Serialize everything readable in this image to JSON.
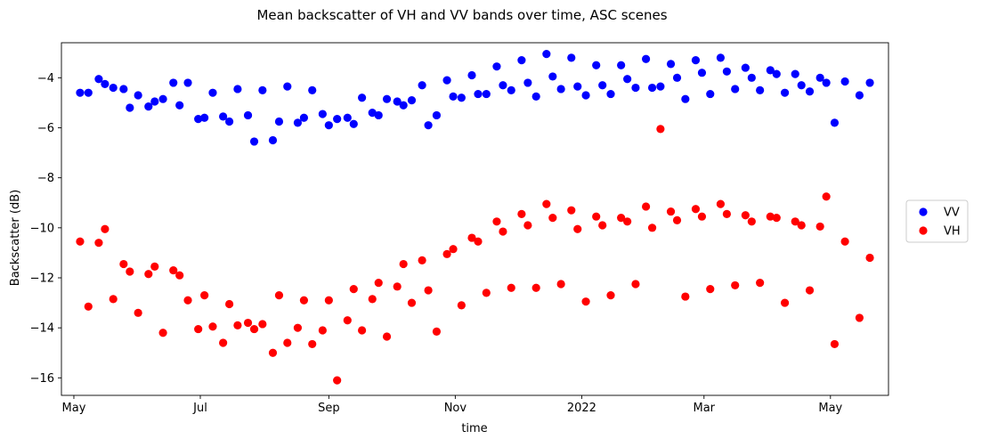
{
  "chart_data": {
    "type": "scatter",
    "title": "Mean backscatter of VH and VV bands over time, ASC scenes",
    "xlabel": "time",
    "ylabel": "Backscatter (dB)",
    "xlim": [
      "2021-04-25",
      "2022-05-29"
    ],
    "ylim": [
      -16.7,
      -2.6
    ],
    "x_ticks": [
      {
        "date": "2021-05-01",
        "label": "May"
      },
      {
        "date": "2021-07-01",
        "label": "Jul"
      },
      {
        "date": "2021-09-01",
        "label": "Sep"
      },
      {
        "date": "2021-11-01",
        "label": "Nov"
      },
      {
        "date": "2022-01-01",
        "label": "2022"
      },
      {
        "date": "2022-03-01",
        "label": "Mar"
      },
      {
        "date": "2022-05-01",
        "label": "May"
      }
    ],
    "y_ticks": [
      -16,
      -14,
      -12,
      -10,
      -8,
      -6,
      -4
    ],
    "y_tick_labels": [
      "−16",
      "−14",
      "−12",
      "−10",
      "−8",
      "−6",
      "−4"
    ],
    "legend_position": "right",
    "series": [
      {
        "name": "VV",
        "color": "#0000ff",
        "points": [
          [
            "2021-05-04",
            -4.6
          ],
          [
            "2021-05-08",
            -4.6
          ],
          [
            "2021-05-13",
            -4.05
          ],
          [
            "2021-05-16",
            -4.25
          ],
          [
            "2021-05-20",
            -4.4
          ],
          [
            "2021-05-25",
            -4.45
          ],
          [
            "2021-05-28",
            -5.2
          ],
          [
            "2021-06-01",
            -4.7
          ],
          [
            "2021-06-06",
            -5.15
          ],
          [
            "2021-06-09",
            -4.95
          ],
          [
            "2021-06-13",
            -4.85
          ],
          [
            "2021-06-18",
            -4.2
          ],
          [
            "2021-06-21",
            -5.1
          ],
          [
            "2021-06-25",
            -4.2
          ],
          [
            "2021-06-30",
            -5.65
          ],
          [
            "2021-07-03",
            -5.6
          ],
          [
            "2021-07-07",
            -4.6
          ],
          [
            "2021-07-12",
            -5.55
          ],
          [
            "2021-07-15",
            -5.75
          ],
          [
            "2021-07-19",
            -4.45
          ],
          [
            "2021-07-24",
            -5.5
          ],
          [
            "2021-07-27",
            -6.55
          ],
          [
            "2021-07-31",
            -4.5
          ],
          [
            "2021-08-05",
            -6.5
          ],
          [
            "2021-08-08",
            -5.75
          ],
          [
            "2021-08-12",
            -4.35
          ],
          [
            "2021-08-17",
            -5.8
          ],
          [
            "2021-08-20",
            -5.6
          ],
          [
            "2021-08-24",
            -4.5
          ],
          [
            "2021-08-29",
            -5.45
          ],
          [
            "2021-09-01",
            -5.9
          ],
          [
            "2021-09-05",
            -5.65
          ],
          [
            "2021-09-10",
            -5.6
          ],
          [
            "2021-09-13",
            -5.85
          ],
          [
            "2021-09-17",
            -4.8
          ],
          [
            "2021-09-22",
            -5.4
          ],
          [
            "2021-09-25",
            -5.5
          ],
          [
            "2021-09-29",
            -4.85
          ],
          [
            "2021-10-04",
            -4.95
          ],
          [
            "2021-10-07",
            -5.1
          ],
          [
            "2021-10-11",
            -4.9
          ],
          [
            "2021-10-16",
            -4.3
          ],
          [
            "2021-10-19",
            -5.9
          ],
          [
            "2021-10-23",
            -5.5
          ],
          [
            "2021-10-28",
            -4.1
          ],
          [
            "2021-10-31",
            -4.75
          ],
          [
            "2021-11-04",
            -4.8
          ],
          [
            "2021-11-09",
            -3.9
          ],
          [
            "2021-11-12",
            -4.65
          ],
          [
            "2021-11-16",
            -4.65
          ],
          [
            "2021-11-21",
            -3.55
          ],
          [
            "2021-11-24",
            -4.3
          ],
          [
            "2021-11-28",
            -4.5
          ],
          [
            "2021-12-03",
            -3.3
          ],
          [
            "2021-12-06",
            -4.2
          ],
          [
            "2021-12-10",
            -4.75
          ],
          [
            "2021-12-15",
            -3.05
          ],
          [
            "2021-12-18",
            -3.95
          ],
          [
            "2021-12-22",
            -4.45
          ],
          [
            "2021-12-27",
            -3.2
          ],
          [
            "2021-12-30",
            -4.35
          ],
          [
            "2022-01-03",
            -4.7
          ],
          [
            "2022-01-08",
            -3.5
          ],
          [
            "2022-01-11",
            -4.3
          ],
          [
            "2022-01-15",
            -4.65
          ],
          [
            "2022-01-20",
            -3.5
          ],
          [
            "2022-01-23",
            -4.05
          ],
          [
            "2022-01-27",
            -4.4
          ],
          [
            "2022-02-01",
            -3.25
          ],
          [
            "2022-02-04",
            -4.4
          ],
          [
            "2022-02-08",
            -4.35
          ],
          [
            "2022-02-13",
            -3.45
          ],
          [
            "2022-02-16",
            -4.0
          ],
          [
            "2022-02-20",
            -4.85
          ],
          [
            "2022-02-25",
            -3.3
          ],
          [
            "2022-02-28",
            -3.8
          ],
          [
            "2022-03-04",
            -4.65
          ],
          [
            "2022-03-09",
            -3.2
          ],
          [
            "2022-03-12",
            -3.75
          ],
          [
            "2022-03-16",
            -4.45
          ],
          [
            "2022-03-21",
            -3.6
          ],
          [
            "2022-03-24",
            -4.0
          ],
          [
            "2022-03-28",
            -4.5
          ],
          [
            "2022-04-02",
            -3.7
          ],
          [
            "2022-04-05",
            -3.85
          ],
          [
            "2022-04-09",
            -4.6
          ],
          [
            "2022-04-14",
            -3.85
          ],
          [
            "2022-04-17",
            -4.3
          ],
          [
            "2022-04-21",
            -4.55
          ],
          [
            "2022-04-26",
            -4.0
          ],
          [
            "2022-04-29",
            -4.2
          ],
          [
            "2022-05-03",
            -5.8
          ],
          [
            "2022-05-08",
            -4.15
          ],
          [
            "2022-05-15",
            -4.7
          ],
          [
            "2022-05-20",
            -4.2
          ]
        ]
      },
      {
        "name": "VH",
        "color": "#ff0000",
        "points": [
          [
            "2021-05-04",
            -10.55
          ],
          [
            "2021-05-08",
            -13.15
          ],
          [
            "2021-05-13",
            -10.6
          ],
          [
            "2021-05-16",
            -10.05
          ],
          [
            "2021-05-20",
            -12.85
          ],
          [
            "2021-05-25",
            -11.45
          ],
          [
            "2021-05-28",
            -11.75
          ],
          [
            "2021-06-01",
            -13.4
          ],
          [
            "2021-06-06",
            -11.85
          ],
          [
            "2021-06-09",
            -11.55
          ],
          [
            "2021-06-13",
            -14.2
          ],
          [
            "2021-06-18",
            -11.7
          ],
          [
            "2021-06-21",
            -11.9
          ],
          [
            "2021-06-25",
            -12.9
          ],
          [
            "2021-06-30",
            -14.05
          ],
          [
            "2021-07-03",
            -12.7
          ],
          [
            "2021-07-07",
            -13.95
          ],
          [
            "2021-07-12",
            -14.6
          ],
          [
            "2021-07-15",
            -13.05
          ],
          [
            "2021-07-19",
            -13.9
          ],
          [
            "2021-07-24",
            -13.8
          ],
          [
            "2021-07-27",
            -14.05
          ],
          [
            "2021-07-31",
            -13.85
          ],
          [
            "2021-08-05",
            -15.0
          ],
          [
            "2021-08-08",
            -12.7
          ],
          [
            "2021-08-12",
            -14.6
          ],
          [
            "2021-08-17",
            -14.0
          ],
          [
            "2021-08-20",
            -12.9
          ],
          [
            "2021-08-24",
            -14.65
          ],
          [
            "2021-08-29",
            -14.1
          ],
          [
            "2021-09-01",
            -12.9
          ],
          [
            "2021-09-05",
            -16.1
          ],
          [
            "2021-09-10",
            -13.7
          ],
          [
            "2021-09-13",
            -12.45
          ],
          [
            "2021-09-17",
            -14.1
          ],
          [
            "2021-09-22",
            -12.85
          ],
          [
            "2021-09-25",
            -12.2
          ],
          [
            "2021-09-29",
            -14.35
          ],
          [
            "2021-10-04",
            -12.35
          ],
          [
            "2021-10-07",
            -11.45
          ],
          [
            "2021-10-11",
            -13.0
          ],
          [
            "2021-10-16",
            -11.3
          ],
          [
            "2021-10-19",
            -12.5
          ],
          [
            "2021-10-23",
            -14.15
          ],
          [
            "2021-10-28",
            -11.05
          ],
          [
            "2021-10-31",
            -10.85
          ],
          [
            "2021-11-04",
            -13.1
          ],
          [
            "2021-11-09",
            -10.4
          ],
          [
            "2021-11-12",
            -10.55
          ],
          [
            "2021-11-16",
            -12.6
          ],
          [
            "2021-11-21",
            -9.75
          ],
          [
            "2021-11-24",
            -10.15
          ],
          [
            "2021-11-28",
            -12.4
          ],
          [
            "2021-12-03",
            -9.45
          ],
          [
            "2021-12-06",
            -9.9
          ],
          [
            "2021-12-10",
            -12.4
          ],
          [
            "2021-12-15",
            -9.05
          ],
          [
            "2021-12-18",
            -9.6
          ],
          [
            "2021-12-22",
            -12.25
          ],
          [
            "2021-12-27",
            -9.3
          ],
          [
            "2021-12-30",
            -10.05
          ],
          [
            "2022-01-03",
            -12.95
          ],
          [
            "2022-01-08",
            -9.55
          ],
          [
            "2022-01-11",
            -9.9
          ],
          [
            "2022-01-15",
            -12.7
          ],
          [
            "2022-01-20",
            -9.6
          ],
          [
            "2022-01-23",
            -9.75
          ],
          [
            "2022-01-27",
            -12.25
          ],
          [
            "2022-02-01",
            -9.15
          ],
          [
            "2022-02-04",
            -10.0
          ],
          [
            "2022-02-08",
            -6.05
          ],
          [
            "2022-02-13",
            -9.35
          ],
          [
            "2022-02-16",
            -9.7
          ],
          [
            "2022-02-20",
            -12.75
          ],
          [
            "2022-02-25",
            -9.25
          ],
          [
            "2022-02-28",
            -9.55
          ],
          [
            "2022-03-04",
            -12.45
          ],
          [
            "2022-03-09",
            -9.05
          ],
          [
            "2022-03-12",
            -9.45
          ],
          [
            "2022-03-16",
            -12.3
          ],
          [
            "2022-03-21",
            -9.5
          ],
          [
            "2022-03-24",
            -9.75
          ],
          [
            "2022-03-28",
            -12.2
          ],
          [
            "2022-04-02",
            -9.55
          ],
          [
            "2022-04-05",
            -9.6
          ],
          [
            "2022-04-09",
            -13.0
          ],
          [
            "2022-04-14",
            -9.75
          ],
          [
            "2022-04-17",
            -9.9
          ],
          [
            "2022-04-21",
            -12.5
          ],
          [
            "2022-04-26",
            -9.95
          ],
          [
            "2022-04-29",
            -8.75
          ],
          [
            "2022-05-03",
            -14.65
          ],
          [
            "2022-05-08",
            -10.55
          ],
          [
            "2022-05-15",
            -13.6
          ],
          [
            "2022-05-20",
            -11.2
          ]
        ]
      }
    ]
  }
}
